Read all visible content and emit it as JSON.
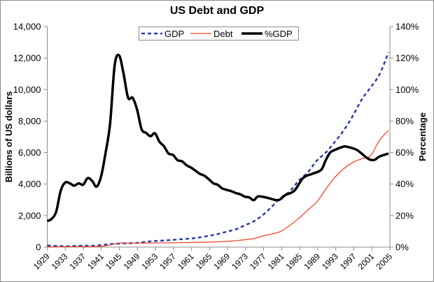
{
  "chart_data": {
    "type": "line",
    "title": "US Debt and GDP",
    "ylabel": "Billions of US dollars",
    "y2label": "Percentage",
    "xlim": [
      1929,
      2005
    ],
    "ylim": [
      0,
      14000
    ],
    "y2lim": [
      0,
      140
    ],
    "grid": false,
    "legend_placement": "top-center",
    "x_ticks": [
      "1929",
      "1933",
      "1937",
      "1941",
      "1945",
      "1949",
      "1953",
      "1957",
      "1961",
      "1965",
      "1969",
      "1973",
      "1977",
      "1981",
      "1985",
      "1989",
      "1993",
      "1997",
      "2001",
      "2005"
    ],
    "y_ticks": [
      "0",
      "2,000",
      "4,000",
      "6,000",
      "8,000",
      "10,000",
      "12,000",
      "14,000"
    ],
    "y2_ticks": [
      "0%",
      "20%",
      "40%",
      "60%",
      "80%",
      "100%",
      "120%",
      "140%"
    ],
    "series": [
      {
        "name": "GDP",
        "axis": "left",
        "color": "#2b3ea8",
        "style": "dashed",
        "points": [
          [
            1929,
            104
          ],
          [
            1931,
            77
          ],
          [
            1933,
            57
          ],
          [
            1935,
            74
          ],
          [
            1937,
            92
          ],
          [
            1939,
            92
          ],
          [
            1941,
            127
          ],
          [
            1943,
            192
          ],
          [
            1945,
            223
          ],
          [
            1947,
            244
          ],
          [
            1949,
            267
          ],
          [
            1951,
            340
          ],
          [
            1953,
            389
          ],
          [
            1955,
            415
          ],
          [
            1957,
            461
          ],
          [
            1959,
            506
          ],
          [
            1961,
            544
          ],
          [
            1963,
            617
          ],
          [
            1965,
            719
          ],
          [
            1967,
            832
          ],
          [
            1969,
            985
          ],
          [
            1971,
            1127
          ],
          [
            1973,
            1382
          ],
          [
            1975,
            1638
          ],
          [
            1977,
            2031
          ],
          [
            1979,
            2563
          ],
          [
            1981,
            3128
          ],
          [
            1983,
            3536
          ],
          [
            1985,
            4220
          ],
          [
            1987,
            4740
          ],
          [
            1989,
            5480
          ],
          [
            1991,
            5990
          ],
          [
            1993,
            6660
          ],
          [
            1995,
            7400
          ],
          [
            1997,
            8300
          ],
          [
            1999,
            9350
          ],
          [
            2001,
            10130
          ],
          [
            2003,
            10960
          ],
          [
            2005,
            12360
          ]
        ]
      },
      {
        "name": "Debt",
        "axis": "left",
        "color": "#f04020",
        "style": "solid",
        "points": [
          [
            1929,
            17
          ],
          [
            1931,
            17
          ],
          [
            1933,
            23
          ],
          [
            1935,
            29
          ],
          [
            1937,
            37
          ],
          [
            1939,
            40
          ],
          [
            1941,
            49
          ],
          [
            1943,
            137
          ],
          [
            1945,
            259
          ],
          [
            1947,
            257
          ],
          [
            1949,
            253
          ],
          [
            1951,
            255
          ],
          [
            1953,
            266
          ],
          [
            1955,
            274
          ],
          [
            1957,
            272
          ],
          [
            1959,
            285
          ],
          [
            1961,
            293
          ],
          [
            1963,
            306
          ],
          [
            1965,
            317
          ],
          [
            1967,
            341
          ],
          [
            1969,
            365
          ],
          [
            1971,
            408
          ],
          [
            1973,
            466
          ],
          [
            1975,
            542
          ],
          [
            1977,
            706
          ],
          [
            1979,
            827
          ],
          [
            1981,
            998
          ],
          [
            1983,
            1377
          ],
          [
            1985,
            1823
          ],
          [
            1987,
            2350
          ],
          [
            1989,
            2857
          ],
          [
            1991,
            3665
          ],
          [
            1993,
            4411
          ],
          [
            1995,
            4974
          ],
          [
            1997,
            5369
          ],
          [
            1999,
            5606
          ],
          [
            2001,
            5807
          ],
          [
            2003,
            6783
          ],
          [
            2005,
            7410
          ]
        ]
      },
      {
        "name": "%GDP",
        "axis": "right",
        "color": "#000000",
        "style": "solid-thick",
        "points": [
          [
            1929,
            16.5
          ],
          [
            1930,
            18
          ],
          [
            1931,
            22.6
          ],
          [
            1932,
            35.8
          ],
          [
            1933,
            41
          ],
          [
            1934,
            40.5
          ],
          [
            1935,
            39
          ],
          [
            1936,
            40.5
          ],
          [
            1937,
            39.6
          ],
          [
            1938,
            43.8
          ],
          [
            1939,
            42
          ],
          [
            1940,
            38.4
          ],
          [
            1941,
            45
          ],
          [
            1942,
            60
          ],
          [
            1943,
            78.5
          ],
          [
            1944,
            115
          ],
          [
            1945,
            121.7
          ],
          [
            1946,
            110
          ],
          [
            1947,
            94.8
          ],
          [
            1948,
            94.8
          ],
          [
            1949,
            87.4
          ],
          [
            1950,
            74.9
          ],
          [
            1951,
            72.5
          ],
          [
            1952,
            70.4
          ],
          [
            1953,
            72.2
          ],
          [
            1954,
            66.8
          ],
          [
            1955,
            64
          ],
          [
            1956,
            59.4
          ],
          [
            1957,
            58.5
          ],
          [
            1958,
            55.2
          ],
          [
            1959,
            54.5
          ],
          [
            1960,
            52
          ],
          [
            1961,
            50.5
          ],
          [
            1962,
            48.5
          ],
          [
            1963,
            46.5
          ],
          [
            1964,
            45.3
          ],
          [
            1965,
            43
          ],
          [
            1966,
            40.5
          ],
          [
            1967,
            39.5
          ],
          [
            1968,
            37.2
          ],
          [
            1970,
            35.5
          ],
          [
            1971,
            34.3
          ],
          [
            1972,
            33.5
          ],
          [
            1973,
            32
          ],
          [
            1974,
            31.5
          ],
          [
            1975,
            29.8
          ],
          [
            1976,
            32.2
          ],
          [
            1978,
            31.3
          ],
          [
            1980,
            29.8
          ],
          [
            1981,
            30.5
          ],
          [
            1982,
            33
          ],
          [
            1984,
            35.7
          ],
          [
            1986,
            43.9
          ],
          [
            1988,
            46.5
          ],
          [
            1990,
            49
          ],
          [
            1991,
            55
          ],
          [
            1992,
            60
          ],
          [
            1993,
            61.6
          ],
          [
            1995,
            63.8
          ],
          [
            1996,
            63.5
          ],
          [
            1998,
            61.6
          ],
          [
            2000,
            57
          ],
          [
            2001,
            55.4
          ],
          [
            2002,
            55.5
          ],
          [
            2003,
            57.5
          ],
          [
            2005,
            59.4
          ]
        ]
      }
    ]
  }
}
